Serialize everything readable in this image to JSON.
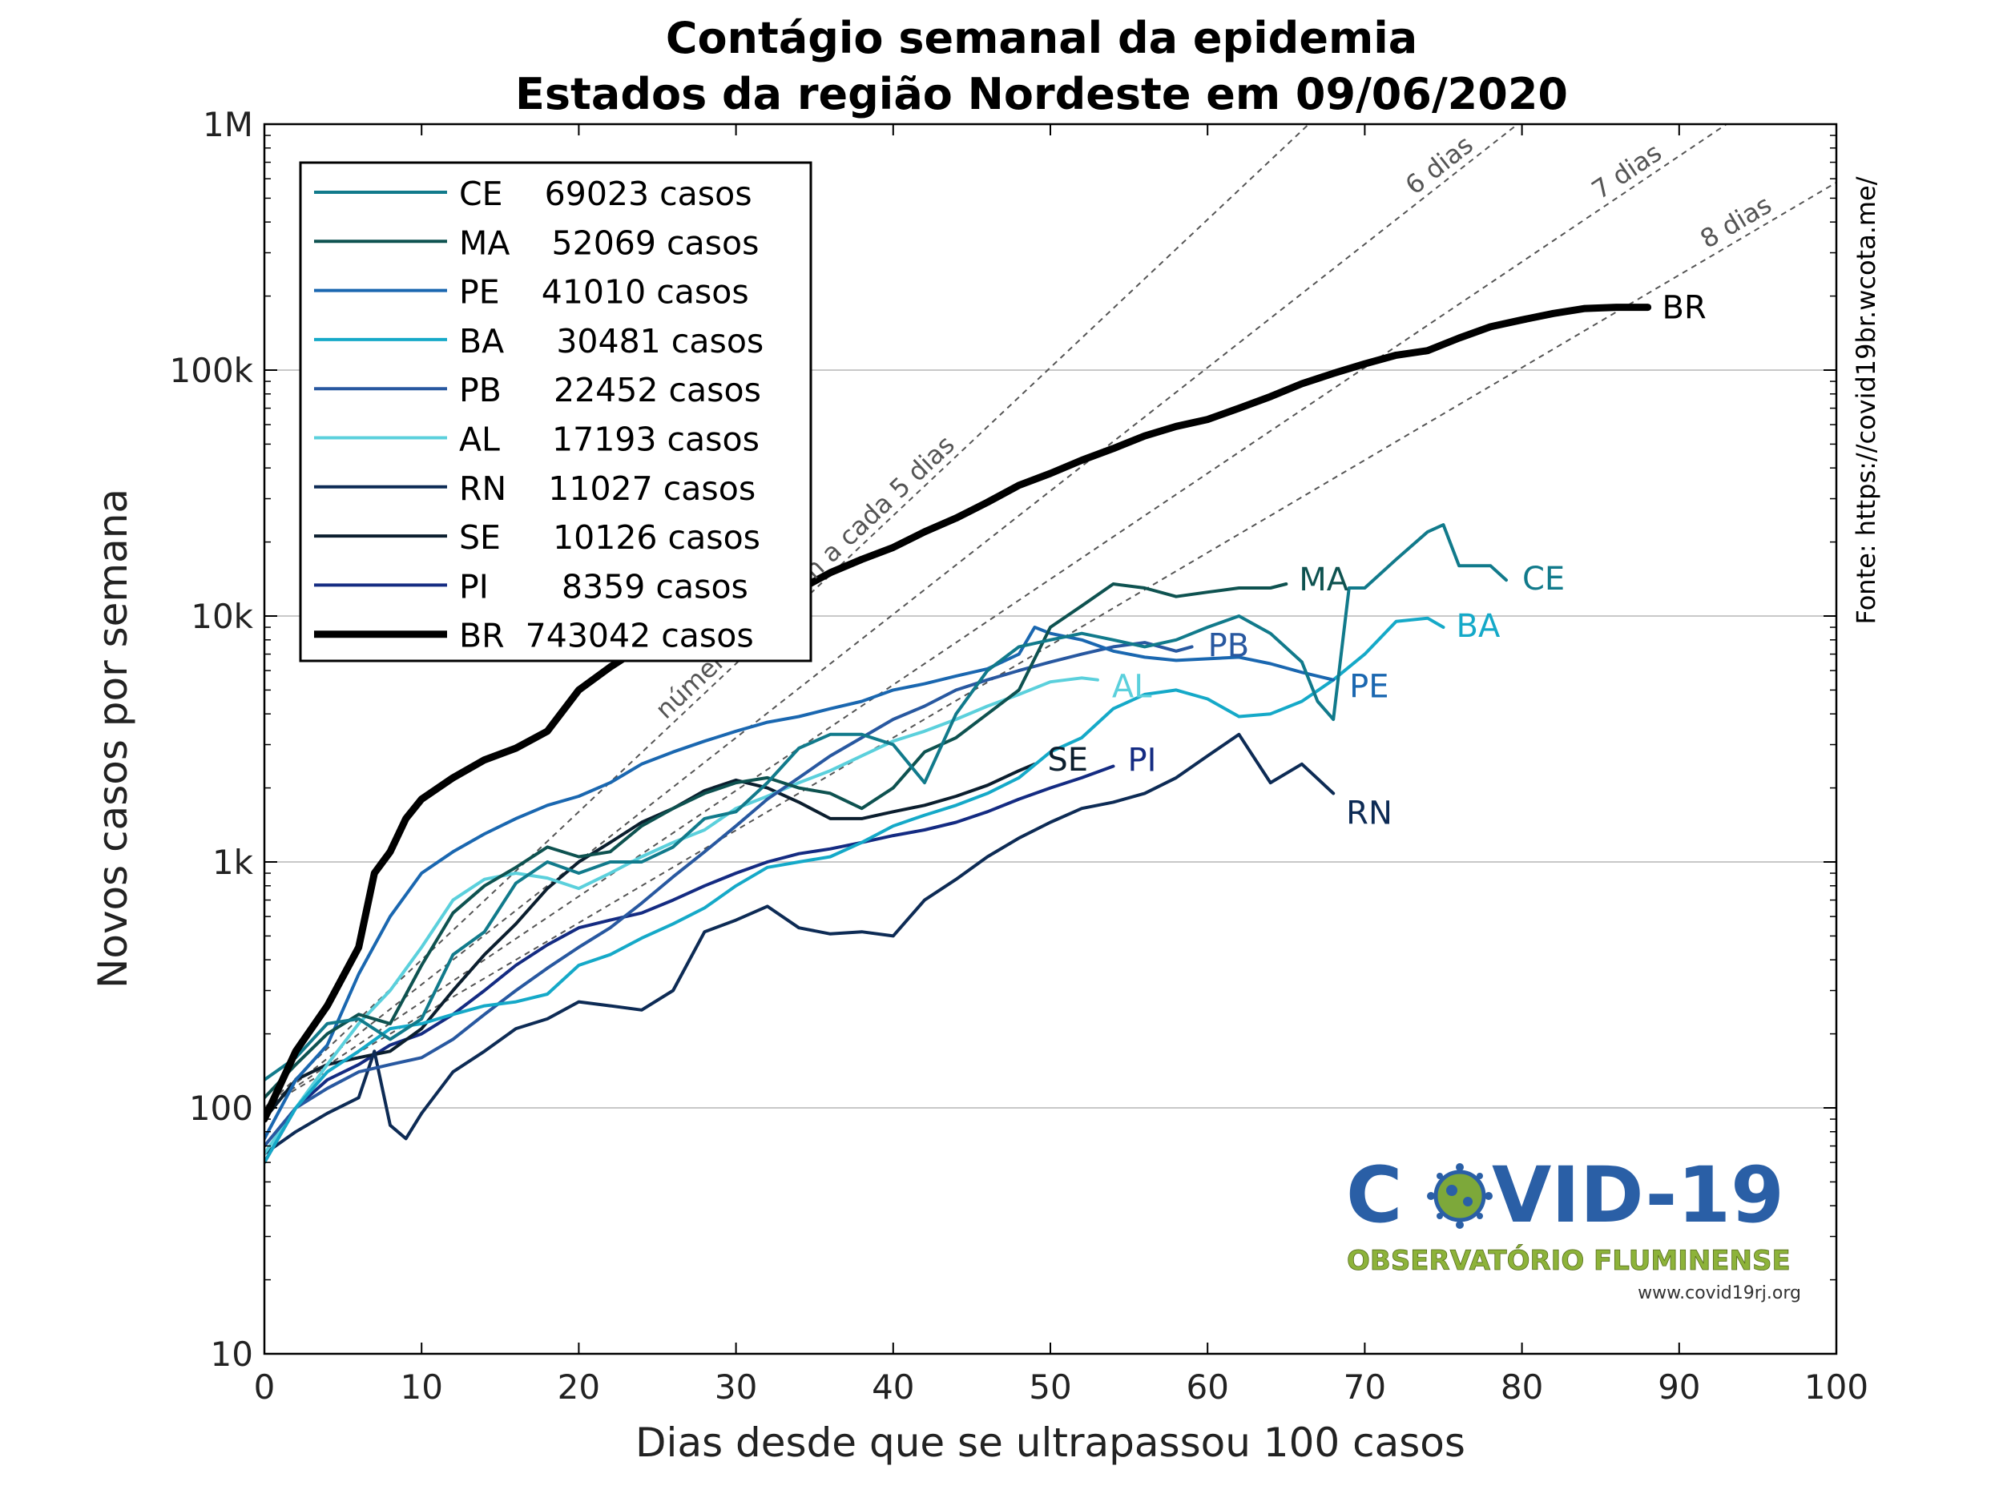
{
  "chart_data": {
    "type": "line",
    "title": "Contágio semanal da epidemia",
    "subtitle": "Estados da região Nordeste em 09/06/2020",
    "xlabel": "Dias desde que se ultrapassou 100 casos",
    "ylabel": "Novos casos por semana",
    "xlim": [
      0,
      100
    ],
    "ylim": [
      10,
      1000000
    ],
    "yscale": "log",
    "xticks": [
      0,
      10,
      20,
      30,
      40,
      50,
      60,
      70,
      80,
      90,
      100
    ],
    "xtick_labels": [
      "0",
      "10",
      "20",
      "30",
      "40",
      "50",
      "60",
      "70",
      "80",
      "90",
      "100"
    ],
    "yticks": [
      10,
      100,
      1000,
      10000,
      100000,
      1000000
    ],
    "ytick_labels": [
      "10",
      "100",
      "1k",
      "10k",
      "100k",
      "1M"
    ],
    "grid": "horizontal",
    "legend_position": "top-left",
    "series": [
      {
        "name": "CE",
        "legend": "CE    69023 casos",
        "color": "#117a8b",
        "width": 4,
        "x": [
          0,
          2,
          4,
          6,
          8,
          10,
          12,
          14,
          16,
          18,
          20,
          22,
          24,
          26,
          28,
          30,
          32,
          34,
          36,
          38,
          40,
          42,
          44,
          46,
          48,
          50,
          52,
          54,
          56,
          58,
          60,
          62,
          64,
          66,
          67,
          68,
          69,
          70,
          72,
          74,
          75,
          76,
          78,
          79
        ],
        "y": [
          130,
          160,
          220,
          230,
          190,
          230,
          420,
          520,
          820,
          1000,
          900,
          1000,
          1000,
          1150,
          1500,
          1600,
          2100,
          2900,
          3300,
          3300,
          3000,
          2100,
          4000,
          6000,
          7500,
          8000,
          8500,
          8000,
          7500,
          8000,
          9000,
          10000,
          8500,
          6500,
          4500,
          3800,
          13000,
          13000,
          17000,
          22000,
          23500,
          16000,
          16000,
          14000
        ]
      },
      {
        "name": "MA",
        "legend": "MA    52069 casos",
        "color": "#0e5250",
        "width": 4,
        "x": [
          0,
          2,
          4,
          6,
          8,
          10,
          12,
          14,
          16,
          18,
          20,
          22,
          24,
          26,
          28,
          30,
          32,
          34,
          36,
          38,
          40,
          42,
          44,
          46,
          48,
          50,
          52,
          54,
          56,
          58,
          60,
          62,
          64,
          65
        ],
        "y": [
          110,
          150,
          200,
          240,
          220,
          380,
          620,
          800,
          950,
          1150,
          1050,
          1100,
          1400,
          1650,
          1900,
          2100,
          2200,
          2000,
          1900,
          1650,
          2000,
          2800,
          3200,
          4000,
          5000,
          9000,
          11000,
          13500,
          13000,
          12000,
          12500,
          13000,
          13000,
          13500
        ]
      },
      {
        "name": "PE",
        "legend": "PE    41010 casos",
        "color": "#1a67b0",
        "width": 4,
        "x": [
          0,
          2,
          4,
          6,
          8,
          10,
          12,
          14,
          16,
          18,
          20,
          22,
          24,
          26,
          28,
          30,
          32,
          34,
          36,
          38,
          40,
          42,
          44,
          46,
          48,
          49,
          50,
          52,
          54,
          56,
          58,
          60,
          62,
          64,
          66,
          68
        ],
        "y": [
          75,
          130,
          180,
          350,
          600,
          900,
          1100,
          1300,
          1500,
          1700,
          1850,
          2100,
          2500,
          2800,
          3100,
          3400,
          3700,
          3900,
          4200,
          4500,
          5000,
          5300,
          5700,
          6100,
          7000,
          9000,
          8500,
          8000,
          7200,
          6800,
          6600,
          6700,
          6800,
          6400,
          5900,
          5500
        ]
      },
      {
        "name": "BA",
        "legend": "BA     30481 casos",
        "color": "#15a9c8",
        "width": 4,
        "x": [
          0,
          2,
          4,
          6,
          8,
          10,
          12,
          14,
          16,
          18,
          20,
          22,
          24,
          26,
          28,
          30,
          32,
          34,
          36,
          38,
          40,
          42,
          44,
          46,
          48,
          50,
          52,
          54,
          56,
          58,
          60,
          62,
          64,
          66,
          68,
          70,
          72,
          74,
          75
        ],
        "y": [
          60,
          100,
          140,
          170,
          210,
          220,
          240,
          260,
          270,
          290,
          380,
          420,
          490,
          560,
          650,
          800,
          950,
          1000,
          1050,
          1200,
          1400,
          1550,
          1700,
          1900,
          2200,
          2800,
          3200,
          4200,
          4800,
          5000,
          4600,
          3900,
          4000,
          4500,
          5500,
          7000,
          9500,
          9800,
          9000
        ]
      },
      {
        "name": "PB",
        "legend": "PB     22452 casos",
        "color": "#2858a0",
        "width": 4,
        "x": [
          0,
          2,
          4,
          6,
          8,
          10,
          12,
          14,
          16,
          18,
          20,
          22,
          24,
          26,
          28,
          30,
          32,
          34,
          36,
          38,
          40,
          42,
          44,
          46,
          48,
          50,
          52,
          54,
          56,
          58,
          59
        ],
        "y": [
          70,
          100,
          120,
          140,
          150,
          160,
          190,
          240,
          300,
          370,
          450,
          540,
          680,
          870,
          1100,
          1400,
          1800,
          2200,
          2700,
          3200,
          3800,
          4300,
          5000,
          5500,
          6000,
          6500,
          7000,
          7500,
          7800,
          7200,
          7500
        ]
      },
      {
        "name": "AL",
        "legend": "AL     17193 casos",
        "color": "#5bd0dc",
        "width": 4,
        "x": [
          0,
          2,
          4,
          6,
          8,
          10,
          12,
          14,
          16,
          18,
          20,
          22,
          24,
          26,
          28,
          30,
          32,
          34,
          36,
          38,
          40,
          42,
          44,
          46,
          48,
          50,
          52,
          53
        ],
        "y": [
          65,
          100,
          150,
          220,
          300,
          450,
          700,
          850,
          900,
          860,
          780,
          900,
          1050,
          1200,
          1350,
          1650,
          1850,
          2100,
          2350,
          2700,
          3100,
          3400,
          3800,
          4300,
          4800,
          5400,
          5600,
          5500
        ]
      },
      {
        "name": "RN",
        "legend": "RN    11027 casos",
        "color": "#0d2b55",
        "width": 4,
        "x": [
          0,
          2,
          4,
          6,
          7,
          8,
          9,
          10,
          12,
          14,
          16,
          18,
          20,
          22,
          24,
          26,
          28,
          30,
          32,
          34,
          36,
          38,
          40,
          42,
          44,
          46,
          48,
          50,
          52,
          54,
          56,
          58,
          60,
          62,
          64,
          66,
          68
        ],
        "y": [
          65,
          80,
          95,
          110,
          170,
          85,
          75,
          95,
          140,
          170,
          210,
          230,
          270,
          260,
          250,
          300,
          520,
          580,
          660,
          540,
          510,
          520,
          500,
          700,
          850,
          1050,
          1250,
          1450,
          1650,
          1750,
          1900,
          2200,
          2700,
          3300,
          2100,
          2500,
          1900
        ]
      },
      {
        "name": "SE",
        "legend": "SE     10126 casos",
        "color": "#0b1e2e",
        "width": 4,
        "x": [
          0,
          2,
          4,
          6,
          8,
          10,
          12,
          14,
          16,
          18,
          20,
          22,
          24,
          26,
          28,
          30,
          32,
          34,
          36,
          38,
          40,
          42,
          44,
          46,
          48,
          49
        ],
        "y": [
          90,
          130,
          150,
          160,
          170,
          210,
          300,
          420,
          560,
          780,
          1000,
          1200,
          1450,
          1650,
          1950,
          2150,
          2000,
          1750,
          1500,
          1500,
          1600,
          1700,
          1850,
          2050,
          2350,
          2500
        ]
      },
      {
        "name": "PI",
        "legend": "PI       8359 casos",
        "color": "#142b82",
        "width": 4,
        "x": [
          0,
          2,
          4,
          6,
          8,
          10,
          12,
          14,
          16,
          18,
          20,
          22,
          24,
          26,
          28,
          30,
          32,
          34,
          36,
          38,
          40,
          42,
          44,
          46,
          48,
          50,
          52,
          54
        ],
        "y": [
          60,
          100,
          130,
          150,
          180,
          200,
          240,
          300,
          380,
          460,
          540,
          580,
          620,
          700,
          800,
          900,
          1000,
          1080,
          1130,
          1200,
          1280,
          1350,
          1450,
          1600,
          1800,
          2000,
          2200,
          2450
        ]
      },
      {
        "name": "BR",
        "legend": "BR  743042 casos",
        "color": "#000000",
        "width": 9,
        "x": [
          0,
          2,
          4,
          6,
          7,
          8,
          9,
          10,
          12,
          14,
          16,
          18,
          20,
          22,
          24,
          26,
          28,
          30,
          32,
          34,
          36,
          38,
          40,
          42,
          44,
          46,
          48,
          50,
          52,
          54,
          56,
          58,
          60,
          62,
          64,
          66,
          68,
          70,
          72,
          74,
          76,
          78,
          80,
          82,
          84,
          86,
          88
        ],
        "y": [
          90,
          170,
          260,
          450,
          900,
          1100,
          1500,
          1800,
          2200,
          2600,
          2900,
          3400,
          5000,
          6200,
          7500,
          8200,
          9200,
          10500,
          11500,
          12800,
          15000,
          17000,
          19000,
          22000,
          25000,
          29000,
          34000,
          38000,
          43000,
          48000,
          54000,
          59000,
          63000,
          70000,
          78000,
          88000,
          97000,
          106000,
          115000,
          120000,
          135000,
          150000,
          160000,
          170000,
          178000,
          180000,
          180000
        ]
      }
    ],
    "series_labels": [
      {
        "name": "CE",
        "text": "CE"
      },
      {
        "name": "MA",
        "text": "MA"
      },
      {
        "name": "PE",
        "text": "PE"
      },
      {
        "name": "BA",
        "text": "BA"
      },
      {
        "name": "PB",
        "text": "PB"
      },
      {
        "name": "AL",
        "text": "AL"
      },
      {
        "name": "RN",
        "text": "RN"
      },
      {
        "name": "SE",
        "text": "SE"
      },
      {
        "name": "PI",
        "text": "PI"
      },
      {
        "name": "BR",
        "text": "BR"
      }
    ],
    "doubling_guides": [
      {
        "days": 5,
        "label": "números dobram a cada 5 dias"
      },
      {
        "days": 6,
        "label": "6 dias"
      },
      {
        "days": 7,
        "label": "7 dias"
      },
      {
        "days": 8,
        "label": "8 dias"
      }
    ],
    "source": "Fonte: https://covid19br.wcota.me/",
    "logo": {
      "title": "COVID-19",
      "subtitle": "OBSERVATÓRIO FLUMINENSE",
      "url": "www.covid19rj.org"
    }
  }
}
